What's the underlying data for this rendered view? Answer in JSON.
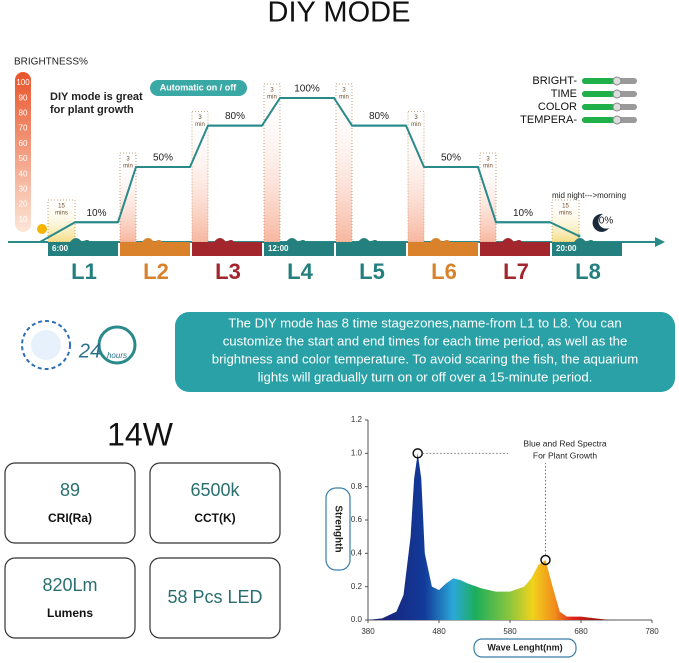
{
  "title": "DIY MODE",
  "schedule": {
    "brightness_label": "BRIGHTNESS%",
    "brightness_scale": [
      100,
      90,
      80,
      70,
      60,
      50,
      40,
      30,
      20,
      10
    ],
    "note": [
      "DIY mode is great",
      "for plant growth"
    ],
    "auto_button": "Automatic on / off",
    "controls": [
      "BRIGHT-",
      "TIME",
      "COLOR",
      "TEMPERA-"
    ],
    "night_label": "mid night--->morning",
    "stages": [
      {
        "name": "L1",
        "color": "#23807f",
        "level": 10,
        "level_label": "10%",
        "ramp": [
          "15",
          "mins"
        ],
        "time": "6:00"
      },
      {
        "name": "L2",
        "color": "#d9822b",
        "level": 50,
        "level_label": "50%",
        "ramp": [
          "3",
          "min"
        ]
      },
      {
        "name": "L3",
        "color": "#a3262d",
        "level": 80,
        "level_label": "80%",
        "ramp": [
          "3",
          "min"
        ]
      },
      {
        "name": "L4",
        "color": "#23807f",
        "level": 100,
        "level_label": "100%",
        "ramp": [
          "3",
          "min"
        ],
        "time": "12:00"
      },
      {
        "name": "L5",
        "color": "#23807f",
        "level": 80,
        "level_label": "80%",
        "ramp": [
          "3",
          "min"
        ]
      },
      {
        "name": "L6",
        "color": "#d9822b",
        "level": 50,
        "level_label": "50%",
        "ramp": [
          "3",
          "min"
        ]
      },
      {
        "name": "L7",
        "color": "#a3262d",
        "level": 10,
        "level_label": "10%",
        "ramp": [
          "3",
          "min"
        ]
      },
      {
        "name": "L8",
        "color": "#23807f",
        "level": 0,
        "level_label": "0%",
        "ramp": [
          "15",
          "mins"
        ],
        "time": "20:00"
      }
    ]
  },
  "description": [
    "The DIY mode has 8 time stagezones,name-from L1 to L8. You can",
    "customize the start and end times for each time period, as well as the",
    "brightness and color temperature. To avoid scaring the fish, the aquarium",
    "lights will gradually turn on or off over a 15-minute period."
  ],
  "clock": {
    "number": "24",
    "unit": "hours"
  },
  "power": "14W",
  "specs": [
    {
      "value": "89",
      "label": "CRI(Ra)"
    },
    {
      "value": "6500k",
      "label": "CCT(K)"
    },
    {
      "value": "820Lm",
      "label": "Lumens"
    },
    {
      "value": "58 Pcs LED"
    }
  ],
  "spectrum": {
    "ylabel": "Strenghth",
    "xlabel": "Wave Lenght(nm)",
    "annotation": [
      "Blue and Red Spectra",
      "For Plant Growth"
    ],
    "xlim": [
      380,
      780
    ],
    "ylim": [
      0,
      1.2
    ],
    "xticks": [
      380,
      480,
      580,
      680,
      780
    ],
    "yticks": [
      {
        "value": 0,
        "label": "0.0"
      },
      0.2,
      0.4,
      0.6,
      0.8,
      {
        "value": 1,
        "label": "1.0"
      },
      0.2,
      1.2
    ],
    "x": [
      380,
      400,
      420,
      430,
      440,
      445,
      450,
      455,
      460,
      470,
      480,
      490,
      500,
      510,
      520,
      540,
      560,
      580,
      600,
      610,
      620,
      630,
      640,
      650,
      660,
      680,
      700,
      720,
      780
    ],
    "y": [
      0,
      0.01,
      0.05,
      0.15,
      0.5,
      0.85,
      1.0,
      0.85,
      0.4,
      0.2,
      0.18,
      0.22,
      0.25,
      0.24,
      0.22,
      0.19,
      0.17,
      0.17,
      0.2,
      0.25,
      0.33,
      0.36,
      0.2,
      0.05,
      0.02,
      0.02,
      0.01,
      0,
      0
    ],
    "peaks": [
      {
        "x": 450,
        "y": 1.0
      },
      {
        "x": 630,
        "y": 0.36
      }
    ]
  }
}
